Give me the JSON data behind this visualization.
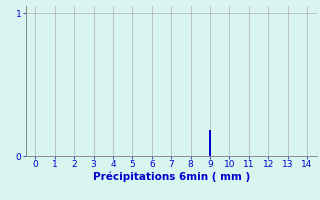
{
  "xlabel": "Précipitations 6min ( mm )",
  "xlim": [
    -0.5,
    14.5
  ],
  "ylim": [
    0,
    1.05
  ],
  "yticks": [
    0,
    1
  ],
  "xticks": [
    0,
    1,
    2,
    3,
    4,
    5,
    6,
    7,
    8,
    9,
    10,
    11,
    12,
    13,
    14
  ],
  "bar_x": [
    9
  ],
  "bar_height": [
    0.18
  ],
  "bar_color": "#0000cc",
  "bar_width": 0.15,
  "background_color": "#d8f5f0",
  "grid_color": "#b0b0b0",
  "axis_color": "#888888",
  "text_color": "#0000cc",
  "xlabel_fontsize": 7.5,
  "tick_fontsize": 6.5
}
